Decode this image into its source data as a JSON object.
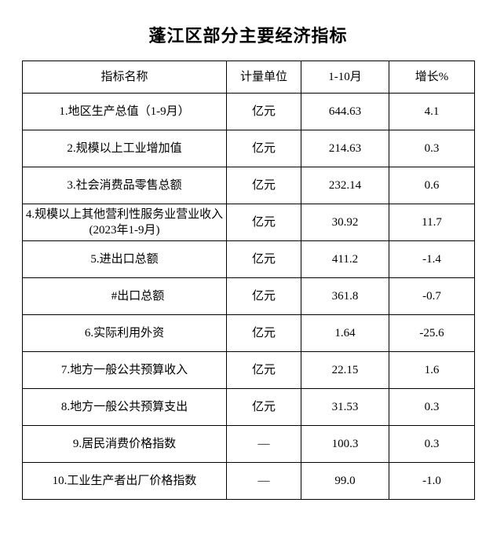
{
  "page": {
    "title": "蓬江区部分主要经济指标"
  },
  "table": {
    "columns": {
      "name": "指标名称",
      "unit": "计量单位",
      "value": "1-10月",
      "growth": "增长%"
    },
    "rows": [
      {
        "name": "1.地区生产总值（1-9月）",
        "unit": "亿元",
        "value": "644.63",
        "growth": "4.1",
        "indent": false
      },
      {
        "name": "2.规模以上工业增加值",
        "unit": "亿元",
        "value": "214.63",
        "growth": "0.3",
        "indent": false
      },
      {
        "name": "3.社会消费品零售总额",
        "unit": "亿元",
        "value": "232.14",
        "growth": "0.6",
        "indent": false
      },
      {
        "name": "4.规模以上其他营利性服务业营业收入(2023年1-9月)",
        "unit": "亿元",
        "value": "30.92",
        "growth": "11.7",
        "indent": false
      },
      {
        "name": "5.进出口总额",
        "unit": "亿元",
        "value": "411.2",
        "growth": "-1.4",
        "indent": false
      },
      {
        "name": "#出口总额",
        "unit": "亿元",
        "value": "361.8",
        "growth": "-0.7",
        "indent": true
      },
      {
        "name": "6.实际利用外资",
        "unit": "亿元",
        "value": "1.64",
        "growth": "-25.6",
        "indent": false
      },
      {
        "name": "7.地方一般公共预算收入",
        "unit": "亿元",
        "value": "22.15",
        "growth": "1.6",
        "indent": false
      },
      {
        "name": "8.地方一般公共预算支出",
        "unit": "亿元",
        "value": "31.53",
        "growth": "0.3",
        "indent": false
      },
      {
        "name": "9.居民消费价格指数",
        "unit": "—",
        "value": "100.3",
        "growth": "0.3",
        "indent": false
      },
      {
        "name": "10.工业生产者出厂价格指数",
        "unit": "—",
        "value": "99.0",
        "growth": "-1.0",
        "indent": false
      }
    ]
  }
}
